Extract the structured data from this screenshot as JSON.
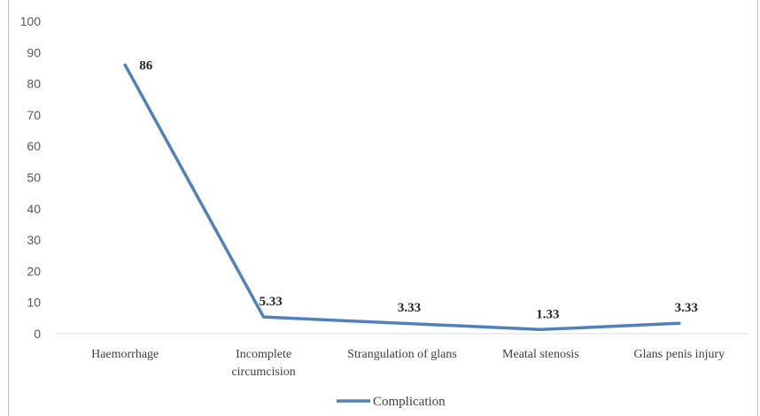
{
  "chart_data": {
    "type": "line",
    "categories": [
      [
        "Haemorrhage"
      ],
      [
        "Incomplete",
        "circumcision"
      ],
      [
        "Strangulation of glans"
      ],
      [
        "Meatal stenosis"
      ],
      [
        "Glans penis injury"
      ]
    ],
    "series": [
      {
        "name": "Complication",
        "values": [
          86,
          5.33,
          3.33,
          1.33,
          3.33
        ],
        "labels": [
          "86",
          "5.33",
          "3.33",
          "1.33",
          "3.33"
        ],
        "color": "#4f81bd"
      }
    ],
    "yticks": [
      "0",
      "10",
      "20",
      "30",
      "40",
      "50",
      "60",
      "70",
      "80",
      "90",
      "100"
    ],
    "ylim": [
      0,
      100
    ],
    "legend_position": "bottom",
    "grid": false
  }
}
